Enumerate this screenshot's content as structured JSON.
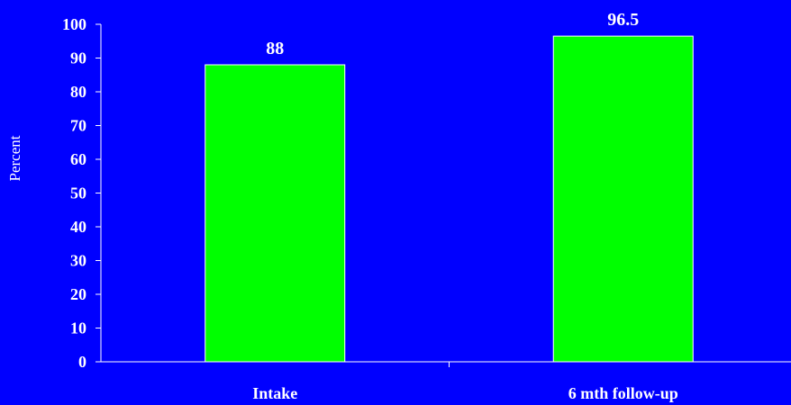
{
  "chart_data": {
    "type": "bar",
    "categories": [
      "Intake",
      "6 mth follow-up"
    ],
    "values": [
      88,
      96.5
    ],
    "data_labels": [
      "88",
      "96.5"
    ],
    "title": "",
    "xlabel": "",
    "ylabel": "Percent",
    "ylim": [
      0,
      100
    ],
    "yticks": [
      0,
      10,
      20,
      30,
      40,
      50,
      60,
      70,
      80,
      90,
      100
    ],
    "ytick_labels": [
      "0",
      "10",
      "20",
      "30",
      "40",
      "50",
      "60",
      "70",
      "80",
      "90",
      "100"
    ],
    "grid": false,
    "legend": "none"
  },
  "colors": {
    "background": "#0000FF",
    "bar_fill": "#00FF00",
    "bar_stroke": "#FFFFFF",
    "axis": "#FFFFFF",
    "text": "#FFFFFF"
  }
}
